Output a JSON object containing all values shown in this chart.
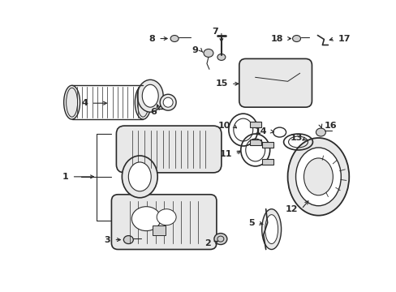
{
  "bg_color": "#ffffff",
  "fig_width": 4.89,
  "fig_height": 3.6,
  "dpi": 100,
  "line_color": "#2a2a2a",
  "fill_light": "#e8e8e8",
  "fill_mid": "#d0d0d0",
  "fill_dark": "#b0b0b0"
}
